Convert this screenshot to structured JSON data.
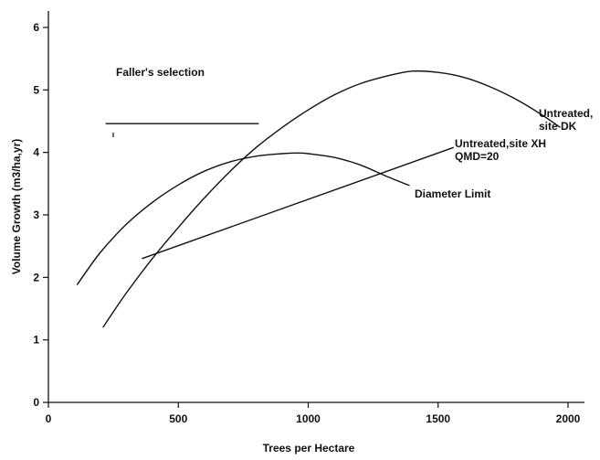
{
  "chart_data": {
    "type": "line",
    "title": "",
    "xlabel": "Trees per Hectare",
    "ylabel": "Volume Growth (m3/ha,yr)",
    "xlim": [
      0,
      2000
    ],
    "ylim": [
      0,
      6
    ],
    "x_ticks": [
      "0",
      "500",
      "1000",
      "1500",
      "2000"
    ],
    "y_ticks": [
      "0",
      "1",
      "2",
      "3",
      "4",
      "5",
      "6"
    ],
    "grid": false,
    "legend": "none",
    "series": [
      {
        "name": "Faller's selection",
        "x": [
          220,
          810
        ],
        "y": [
          4.46,
          4.46
        ]
      },
      {
        "name": "Untreated, site DK",
        "x": [
          210,
          300,
          400,
          500,
          600,
          700,
          800,
          900,
          1000,
          1100,
          1200,
          1300,
          1400,
          1500,
          1600,
          1700,
          1800,
          1900,
          1970
        ],
        "y": [
          1.2,
          1.75,
          2.3,
          2.8,
          3.27,
          3.7,
          4.08,
          4.4,
          4.68,
          4.92,
          5.1,
          5.22,
          5.3,
          5.28,
          5.2,
          5.05,
          4.85,
          4.6,
          4.4
        ]
      },
      {
        "name": "Diameter Limit",
        "x": [
          110,
          200,
          300,
          400,
          500,
          600,
          700,
          800,
          900,
          960,
          1000,
          1100,
          1200,
          1300,
          1390
        ],
        "y": [
          1.88,
          2.4,
          2.85,
          3.2,
          3.48,
          3.7,
          3.85,
          3.94,
          3.98,
          3.99,
          3.98,
          3.92,
          3.8,
          3.62,
          3.47
        ]
      },
      {
        "name": "Untreated,site XH QMD=20",
        "x": [
          360,
          1560
        ],
        "y": [
          2.3,
          4.08
        ]
      }
    ],
    "annotations": [
      {
        "id": "fallers",
        "text": "Faller's selection"
      },
      {
        "id": "dk1",
        "text": "Untreated,"
      },
      {
        "id": "dk2",
        "text": "site DK"
      },
      {
        "id": "xh1",
        "text": "Untreated,site XH"
      },
      {
        "id": "xh2",
        "text": "QMD=20"
      },
      {
        "id": "dl",
        "text": "Diameter Limit"
      }
    ]
  }
}
